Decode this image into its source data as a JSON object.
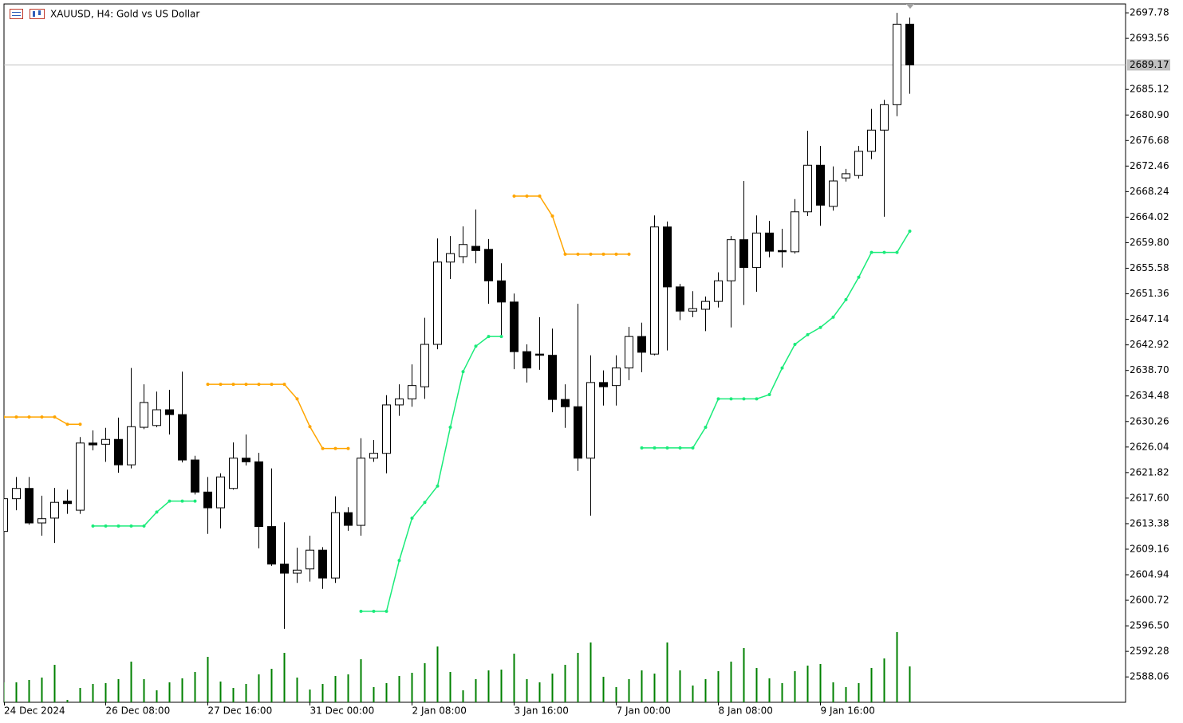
{
  "chart_data": {
    "type": "candlestick",
    "title": "XAUUSD, H4:  Gold vs US Dollar",
    "categories": [
      "24 Dec 2024",
      null,
      null,
      null,
      null,
      null,
      null,
      null,
      "26 Dec 08:00",
      null,
      null,
      null,
      null,
      null,
      null,
      null,
      "27 Dec 16:00",
      null,
      null,
      null,
      null,
      null,
      null,
      null,
      "31 Dec 00:00",
      null,
      null,
      null,
      null,
      null,
      null,
      null,
      "2 Jan 08:00",
      null,
      null,
      null,
      null,
      null,
      null,
      null,
      "3 Jan 16:00",
      null,
      null,
      null,
      null,
      null,
      null,
      null,
      "7 Jan 00:00",
      null,
      null,
      null,
      null,
      null,
      null,
      null,
      "8 Jan 08:00",
      null,
      null,
      null,
      null,
      null,
      null,
      null,
      "9 Jan 16:00",
      null,
      null,
      null,
      null,
      null,
      null,
      null
    ],
    "open": [
      2612.1,
      2617.5,
      2619.2,
      2613.5,
      2614.3,
      2617.1,
      2615.6,
      2626.7,
      2626.5,
      2627.3,
      2623.1,
      2629.3,
      2629.6,
      2632.2,
      2631.4,
      2623.9,
      2618.6,
      2616.0,
      2619.2,
      2624.2,
      2623.6,
      2612.9,
      2606.7,
      2605.2,
      2605.9,
      2609.0,
      2604.4,
      2615.2,
      2613.1,
      2624.2,
      2625.0,
      2633.0,
      2634.0,
      2636.0,
      2643.0,
      2656.6,
      2657.5,
      2659.2,
      2658.7,
      2653.5,
      2650.0,
      2641.8,
      2641.4,
      2641.2,
      2633.9,
      2632.7,
      2624.2,
      2636.7,
      2636.2,
      2639.1,
      2644.3,
      2641.4,
      2662.4,
      2652.5,
      2648.5,
      2648.8,
      2650.1,
      2653.5,
      2660.3,
      2655.7,
      2661.4,
      2658.5,
      2658.3,
      2664.9,
      2672.6,
      2665.8,
      2670.5,
      2670.9,
      2674.9,
      2678.4,
      2682.6,
      2695.9
    ],
    "high": [
      2618.2,
      2621.1,
      2621.1,
      2618.0,
      2619.3,
      2619.0,
      2627.7,
      2628.8,
      2629.2,
      2630.9,
      2639.1,
      2636.4,
      2635.2,
      2635.5,
      2638.5,
      2624.6,
      2621.1,
      2621.7,
      2626.8,
      2628.1,
      2625.1,
      2622.5,
      2613.6,
      2609.4,
      2611.4,
      2609.5,
      2617.9,
      2616.1,
      2627.5,
      2627.2,
      2634.6,
      2636.4,
      2639.7,
      2647.4,
      2660.5,
      2660.9,
      2662.5,
      2665.3,
      2660.4,
      2656.4,
      2651.4,
      2643.0,
      2647.5,
      2645.6,
      2636.4,
      2649.7,
      2641.2,
      2638.7,
      2641.2,
      2645.9,
      2646.6,
      2664.3,
      2663.3,
      2653.0,
      2651.8,
      2650.9,
      2654.9,
      2660.9,
      2670.0,
      2664.3,
      2663.4,
      2662.1,
      2667.0,
      2678.3,
      2675.8,
      2672.4,
      2672.0,
      2675.8,
      2681.9,
      2683.4,
      2697.78,
      2697.0
    ],
    "low": [
      2611.7,
      2615.6,
      2613.2,
      2611.4,
      2610.2,
      2615.0,
      2615.0,
      2625.5,
      2623.6,
      2621.8,
      2622.5,
      2629.0,
      2629.3,
      2628.1,
      2623.5,
      2618.2,
      2611.7,
      2612.6,
      2619.0,
      2623.0,
      2609.3,
      2606.4,
      2596.0,
      2603.6,
      2603.8,
      2602.6,
      2603.6,
      2612.2,
      2611.4,
      2623.6,
      2621.7,
      2631.2,
      2632.7,
      2634.0,
      2642.2,
      2653.8,
      2656.4,
      2656.4,
      2649.7,
      2644.1,
      2638.9,
      2636.7,
      2638.8,
      2631.8,
      2629.2,
      2622.1,
      2614.7,
      2632.9,
      2632.9,
      2637.1,
      2638.4,
      2641.2,
      2642.0,
      2647.0,
      2647.5,
      2645.2,
      2649.1,
      2645.8,
      2649.5,
      2651.7,
      2657.4,
      2655.7,
      2658.0,
      2664.2,
      2662.6,
      2665.1,
      2669.9,
      2670.4,
      2673.6,
      2664.1,
      2680.7,
      2684.4
    ],
    "close": [
      2617.5,
      2619.2,
      2613.5,
      2614.2,
      2616.9,
      2616.7,
      2626.7,
      2626.4,
      2627.3,
      2623.1,
      2629.4,
      2633.4,
      2632.2,
      2631.4,
      2623.9,
      2618.6,
      2616.0,
      2621.1,
      2624.2,
      2623.6,
      2612.9,
      2606.7,
      2605.2,
      2605.7,
      2609.0,
      2604.4,
      2615.2,
      2613.1,
      2624.2,
      2625.0,
      2633.0,
      2634.0,
      2636.2,
      2643.0,
      2656.6,
      2658.0,
      2659.5,
      2658.5,
      2653.5,
      2650.0,
      2641.8,
      2639.1,
      2641.2,
      2633.9,
      2632.7,
      2624.2,
      2636.7,
      2636.0,
      2639.1,
      2644.3,
      2641.7,
      2662.4,
      2652.5,
      2648.5,
      2648.9,
      2650.1,
      2653.5,
      2660.3,
      2655.7,
      2661.4,
      2658.4,
      2658.3,
      2664.9,
      2672.6,
      2666.0,
      2670.0,
      2671.2,
      2674.9,
      2678.4,
      2682.6,
      2695.9,
      2689.17
    ],
    "up_color": "#ffffff",
    "down_color": "#000000",
    "volume": {
      "color": "#008000",
      "values": [
        25,
        25,
        28,
        31,
        47,
        3,
        18,
        23,
        24,
        29,
        51,
        29,
        15,
        25,
        30,
        38,
        57,
        26,
        18,
        23,
        35,
        42,
        62,
        31,
        16,
        23,
        33,
        35,
        54,
        19,
        24,
        33,
        37,
        49,
        70,
        38,
        15,
        29,
        40,
        41,
        61,
        29,
        25,
        36,
        47,
        62,
        75,
        32,
        19,
        29,
        40,
        36,
        75,
        40,
        21,
        29,
        39,
        51,
        68,
        43,
        30,
        24,
        39,
        46,
        48,
        25,
        19,
        24,
        43,
        55,
        88,
        45
      ]
    },
    "series": [
      {
        "color": "#ffa500",
        "values": [
          2631.0,
          2631.0,
          2631.0,
          2631.0,
          2631.0,
          2629.8,
          2629.8,
          null,
          null,
          null,
          null,
          null,
          null,
          null,
          null,
          null,
          2636.4,
          2636.4,
          2636.4,
          2636.4,
          2636.4,
          2636.4,
          2636.4,
          2634.0,
          2629.4,
          2625.8,
          2625.8,
          2625.8,
          null,
          null,
          null,
          null,
          null,
          null,
          null,
          null,
          null,
          null,
          null,
          null,
          2667.5,
          2667.5,
          2667.5,
          2664.2,
          2657.9,
          2657.9,
          2657.9,
          2657.9,
          2657.9,
          2657.9,
          null,
          null,
          null,
          null,
          null,
          null,
          null,
          null,
          null,
          null,
          null,
          null,
          null,
          null,
          null,
          null,
          null,
          null,
          null,
          null,
          null,
          null
        ]
      },
      {
        "color": "#1aeb7a",
        "values": [
          null,
          null,
          null,
          null,
          null,
          null,
          null,
          2613.0,
          2613.0,
          2613.0,
          2613.0,
          2613.0,
          2615.3,
          2617.1,
          2617.1,
          2617.1,
          null,
          null,
          null,
          null,
          null,
          null,
          null,
          null,
          null,
          null,
          null,
          null,
          2598.9,
          2598.9,
          2598.9,
          2607.3,
          2614.3,
          2616.9,
          2619.6,
          2629.3,
          2638.5,
          2642.7,
          2644.3,
          2644.3,
          null,
          null,
          null,
          null,
          null,
          null,
          null,
          null,
          null,
          null,
          2625.9,
          2625.9,
          2625.9,
          2625.9,
          2625.9,
          2629.3,
          2634.0,
          2634.0,
          2634.0,
          2634.0,
          2634.7,
          2639.1,
          2643.0,
          2644.6,
          2645.8,
          2647.5,
          2650.4,
          2654.1,
          2658.2,
          2658.2,
          2658.2,
          2661.7
        ]
      }
    ],
    "last_price": 2689.17,
    "ylim": [
      2583.87,
      2699.24
    ],
    "yticks": [
      2588.06,
      2592.28,
      {
        "value": 2596.5,
        "label": "2596.50"
      },
      2600.72,
      2604.94,
      2609.16,
      2613.38,
      {
        "value": 2617.6,
        "label": "2617.60"
      },
      2621.82,
      2626.04,
      2630.26,
      2634.48,
      {
        "value": 2638.7,
        "label": "2638.70"
      },
      2642.92,
      2647.14,
      2651.36,
      2655.58,
      {
        "value": 2659.8,
        "label": "2659.80"
      },
      2664.02,
      2668.24,
      2672.46,
      2676.68,
      {
        "value": 2680.9,
        "label": "2680.90"
      },
      2685.12,
      2693.56,
      2697.78
    ],
    "grid": false
  }
}
